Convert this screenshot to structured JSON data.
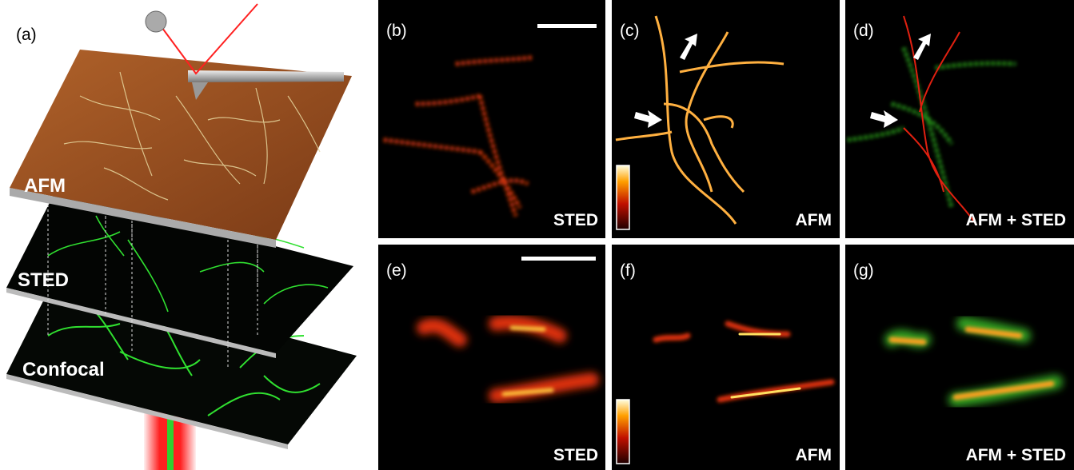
{
  "panel_a": {
    "label": "(a)",
    "layers": [
      "AFM",
      "STED",
      "Confocal"
    ]
  },
  "panels": [
    {
      "label": "(b)",
      "caption": "STED"
    },
    {
      "label": "(c)",
      "caption": "AFM"
    },
    {
      "label": "(d)",
      "caption": "AFM + STED"
    },
    {
      "label": "(e)",
      "caption": "STED"
    },
    {
      "label": "(f)",
      "caption": "AFM"
    },
    {
      "label": "(g)",
      "caption": "AFM + STED"
    }
  ]
}
